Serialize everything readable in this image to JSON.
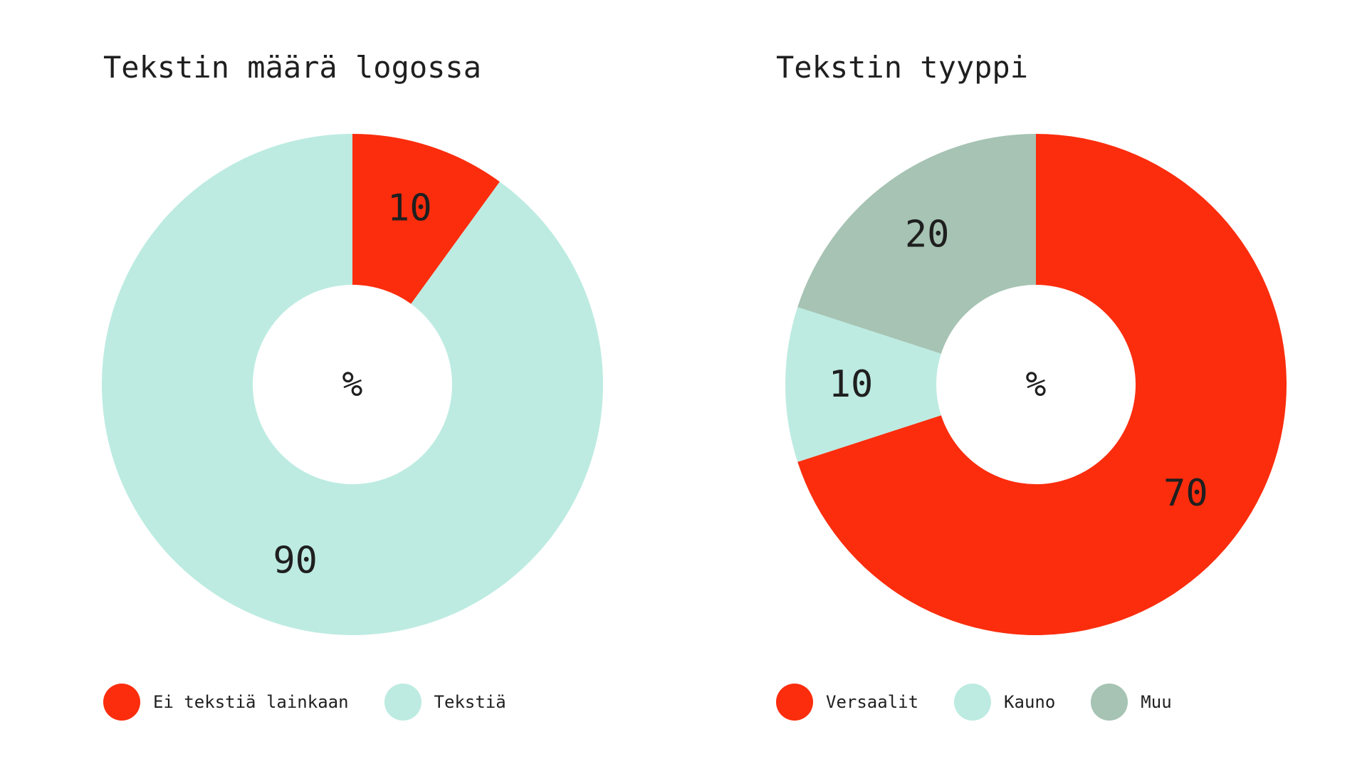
{
  "chart_data": [
    {
      "type": "pie",
      "title": "Tekstin määrä logossa",
      "center_label": "%",
      "categories": [
        "Ei tekstiä lainkaan",
        "Tekstiä"
      ],
      "values": [
        10,
        90
      ],
      "colors": [
        "#fb2d0d",
        "#bdebe1"
      ],
      "legend_position": "bottom-left"
    },
    {
      "type": "pie",
      "title": "Tekstin tyyppi",
      "center_label": "%",
      "categories": [
        "Versaalit",
        "Kauno",
        "Muu"
      ],
      "values": [
        70,
        10,
        20
      ],
      "colors": [
        "#fb2d0d",
        "#bdebe1",
        "#a6c3b3"
      ],
      "legend_position": "bottom-left"
    }
  ]
}
